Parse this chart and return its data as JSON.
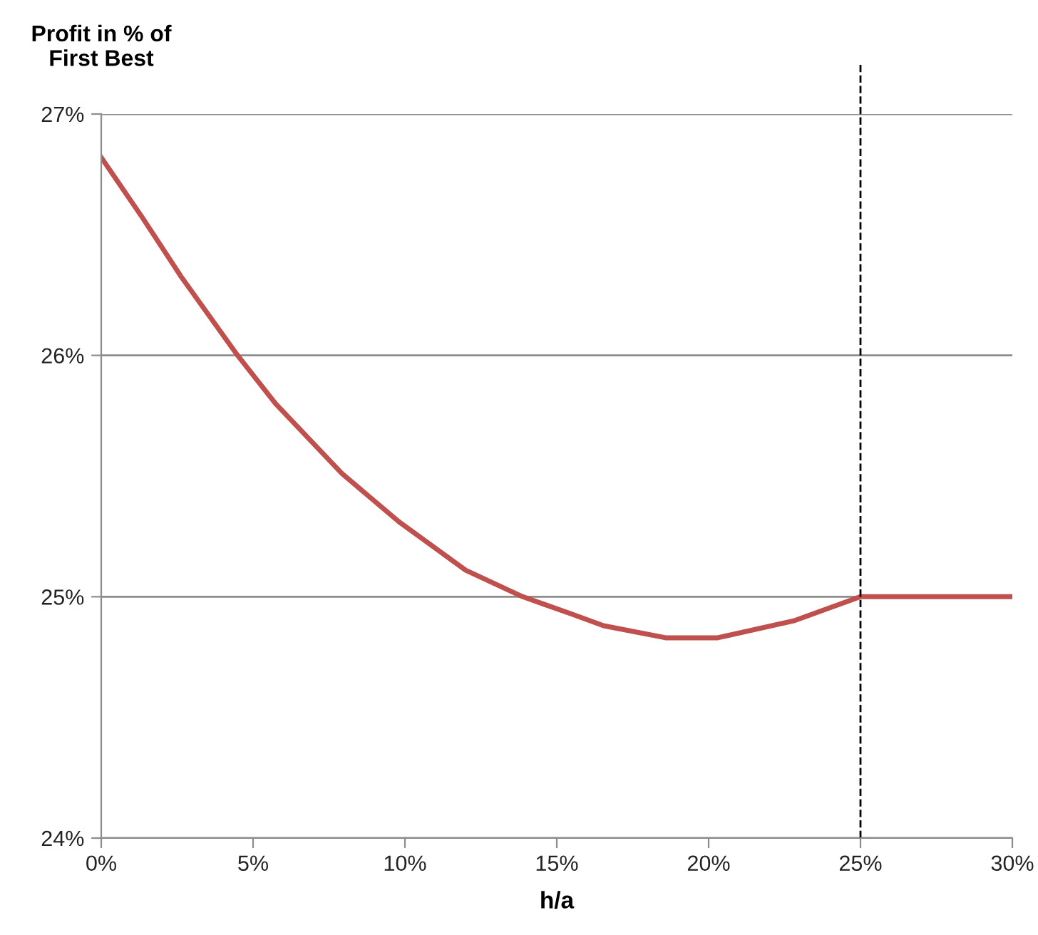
{
  "chart_data": {
    "type": "line",
    "ylabel": "Profit in % of\nFirst Best",
    "xlabel": "h/a",
    "x": [
      0,
      1.36,
      2.61,
      4.49,
      5.74,
      7.93,
      9.81,
      12.0,
      13.88,
      15.45,
      16.54,
      18.58,
      20.3,
      22.8,
      25.0,
      30.0
    ],
    "series": [
      {
        "color": "#c0504d",
        "values": [
          26.82,
          26.57,
          26.33,
          26.0,
          25.8,
          25.51,
          25.31,
          25.11,
          25.0,
          24.93,
          24.88,
          24.83,
          24.83,
          24.9,
          25.0,
          25.0
        ]
      }
    ],
    "xlim": [
      0,
      30
    ],
    "ylim": [
      24,
      27
    ],
    "xticks": [
      {
        "value": 0,
        "label": "0%"
      },
      {
        "value": 5,
        "label": "5%"
      },
      {
        "value": 10,
        "label": "10%"
      },
      {
        "value": 15,
        "label": "15%"
      },
      {
        "value": 20,
        "label": "20%"
      },
      {
        "value": 25,
        "label": "25%"
      },
      {
        "value": 30,
        "label": "30%"
      }
    ],
    "yticks": [
      {
        "value": 24,
        "label": "24%"
      },
      {
        "value": 25,
        "label": "25%"
      },
      {
        "value": 26,
        "label": "26%"
      },
      {
        "value": 27,
        "label": "27%"
      }
    ],
    "grid": "y",
    "legend": false,
    "marker": "none",
    "line_style": "solid",
    "ref_lines": [
      {
        "axis": "x",
        "value": 25,
        "color": "#000000",
        "line_style": "dashed"
      }
    ]
  }
}
